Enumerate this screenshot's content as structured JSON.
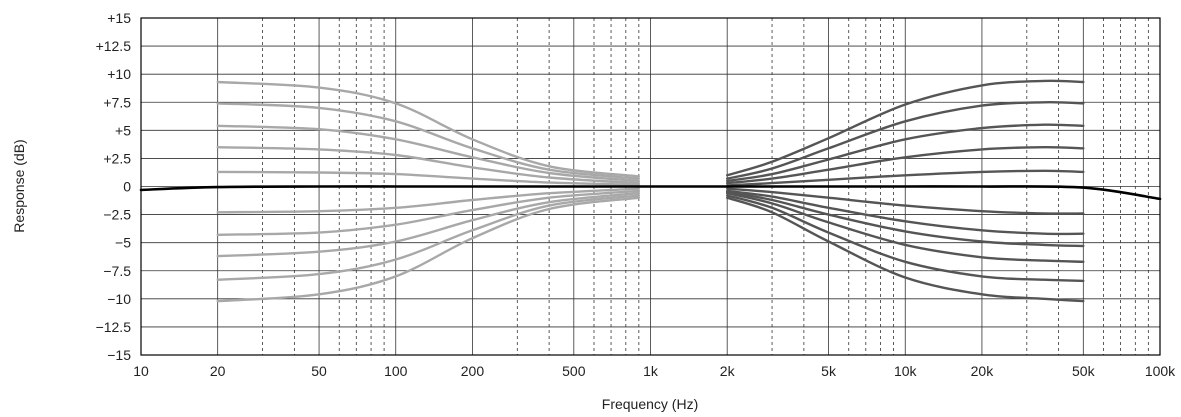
{
  "chart_data": {
    "type": "line",
    "xlabel": "Frequency (Hz)",
    "ylabel": "Response (dB)",
    "x_scale": "log",
    "xlim": [
      10,
      100000
    ],
    "ylim": [
      -15,
      15
    ],
    "x_major_ticks": [
      10,
      20,
      50,
      100,
      200,
      500,
      1000,
      2000,
      5000,
      10000,
      20000,
      50000,
      100000
    ],
    "x_tick_labels": [
      "10",
      "20",
      "50",
      "100",
      "200",
      "500",
      "1k",
      "2k",
      "5k",
      "10k",
      "20k",
      "50k",
      "100k"
    ],
    "x_minor_ticks": [
      30,
      40,
      60,
      70,
      80,
      90,
      300,
      400,
      600,
      700,
      800,
      900,
      3000,
      4000,
      6000,
      7000,
      8000,
      9000,
      30000,
      40000,
      60000,
      70000,
      80000,
      90000
    ],
    "y_ticks": [
      15,
      12.5,
      10,
      7.5,
      5,
      2.5,
      0,
      -2.5,
      -5,
      -7.5,
      -10,
      -12.5,
      -15
    ],
    "y_tick_labels": [
      "+15",
      "+12.5",
      "+10",
      "+7.5",
      "+5",
      "+2.5",
      "0",
      "−2.5",
      "−5",
      "−7.5",
      "−10",
      "−12.5",
      "−15"
    ],
    "grid": true,
    "colors": {
      "bass_curves": "#a8a8a8",
      "treble_curves": "#555555",
      "flat_curve": "#000000",
      "grid": "#333333"
    },
    "series": [
      {
        "group": "flat",
        "x": [
          10,
          20,
          50,
          100,
          200,
          500,
          1000,
          2000,
          5000,
          10000,
          20000,
          50000,
          100000
        ],
        "y": [
          -0.3,
          -0.05,
          0,
          0,
          0,
          0,
          0,
          0,
          0,
          0,
          0,
          -0.1,
          -1.1
        ]
      },
      {
        "group": "bass",
        "x": [
          20,
          50,
          100,
          200,
          400,
          900
        ],
        "y": [
          9.3,
          8.8,
          7.4,
          4.2,
          1.8,
          0.9
        ]
      },
      {
        "group": "bass",
        "x": [
          20,
          50,
          100,
          200,
          400,
          900
        ],
        "y": [
          7.4,
          7.0,
          5.8,
          3.4,
          1.5,
          0.7
        ]
      },
      {
        "group": "bass",
        "x": [
          20,
          50,
          100,
          200,
          400,
          900
        ],
        "y": [
          5.4,
          5.1,
          4.2,
          2.6,
          1.2,
          0.5
        ]
      },
      {
        "group": "bass",
        "x": [
          20,
          50,
          100,
          200,
          400,
          900
        ],
        "y": [
          3.5,
          3.3,
          2.8,
          1.7,
          0.8,
          0.3
        ]
      },
      {
        "group": "bass",
        "x": [
          20,
          50,
          100,
          200,
          400,
          900
        ],
        "y": [
          1.3,
          1.25,
          1.1,
          0.7,
          0.35,
          0.15
        ]
      },
      {
        "group": "bass",
        "x": [
          20,
          50,
          100,
          200,
          400,
          900
        ],
        "y": [
          -2.3,
          -2.2,
          -1.9,
          -1.2,
          -0.6,
          -0.2
        ]
      },
      {
        "group": "bass",
        "x": [
          20,
          50,
          100,
          200,
          400,
          900
        ],
        "y": [
          -4.3,
          -4.1,
          -3.4,
          -2.1,
          -1.0,
          -0.4
        ]
      },
      {
        "group": "bass",
        "x": [
          20,
          50,
          100,
          200,
          400,
          900
        ],
        "y": [
          -6.2,
          -5.8,
          -4.9,
          -3.0,
          -1.4,
          -0.6
        ]
      },
      {
        "group": "bass",
        "x": [
          20,
          50,
          100,
          200,
          400,
          900
        ],
        "y": [
          -8.3,
          -7.8,
          -6.5,
          -3.9,
          -1.7,
          -0.8
        ]
      },
      {
        "group": "bass",
        "x": [
          20,
          50,
          100,
          200,
          400,
          900
        ],
        "y": [
          -10.2,
          -9.6,
          -8.0,
          -4.6,
          -2.0,
          -1.0
        ]
      },
      {
        "group": "treble",
        "x": [
          2000,
          3000,
          5000,
          10000,
          20000,
          35000,
          50000
        ],
        "y": [
          1.0,
          2.2,
          4.3,
          7.3,
          9.0,
          9.4,
          9.3
        ]
      },
      {
        "group": "treble",
        "x": [
          2000,
          3000,
          5000,
          10000,
          20000,
          35000,
          50000
        ],
        "y": [
          0.7,
          1.6,
          3.4,
          5.8,
          7.2,
          7.5,
          7.4
        ]
      },
      {
        "group": "treble",
        "x": [
          2000,
          3000,
          5000,
          10000,
          20000,
          35000,
          50000
        ],
        "y": [
          0.5,
          1.1,
          2.4,
          4.2,
          5.2,
          5.5,
          5.4
        ]
      },
      {
        "group": "treble",
        "x": [
          2000,
          3000,
          5000,
          10000,
          20000,
          35000,
          50000
        ],
        "y": [
          0.3,
          0.7,
          1.5,
          2.6,
          3.3,
          3.5,
          3.4
        ]
      },
      {
        "group": "treble",
        "x": [
          2000,
          3000,
          5000,
          10000,
          20000,
          35000,
          50000
        ],
        "y": [
          0.1,
          0.3,
          0.6,
          1.0,
          1.3,
          1.4,
          1.3
        ]
      },
      {
        "group": "treble",
        "x": [
          2000,
          3000,
          5000,
          10000,
          20000,
          35000,
          50000
        ],
        "y": [
          -0.2,
          -0.5,
          -1.0,
          -1.7,
          -2.2,
          -2.4,
          -2.4
        ]
      },
      {
        "group": "treble",
        "x": [
          2000,
          3000,
          5000,
          10000,
          20000,
          35000,
          50000
        ],
        "y": [
          -0.4,
          -0.9,
          -1.9,
          -3.1,
          -3.9,
          -4.2,
          -4.2
        ]
      },
      {
        "group": "treble",
        "x": [
          2000,
          3000,
          5000,
          10000,
          20000,
          35000,
          50000
        ],
        "y": [
          -0.5,
          -1.2,
          -2.5,
          -4.0,
          -4.9,
          -5.2,
          -5.3
        ]
      },
      {
        "group": "treble",
        "x": [
          2000,
          3000,
          5000,
          10000,
          20000,
          35000,
          50000
        ],
        "y": [
          -0.6,
          -1.5,
          -3.2,
          -5.2,
          -6.3,
          -6.6,
          -6.7
        ]
      },
      {
        "group": "treble",
        "x": [
          2000,
          3000,
          5000,
          10000,
          20000,
          35000,
          50000
        ],
        "y": [
          -0.8,
          -1.9,
          -4.1,
          -6.7,
          -8.0,
          -8.3,
          -8.4
        ]
      },
      {
        "group": "treble",
        "x": [
          2000,
          3000,
          5000,
          10000,
          20000,
          35000,
          50000
        ],
        "y": [
          -1.0,
          -2.3,
          -4.9,
          -8.1,
          -9.6,
          -10.0,
          -10.2
        ]
      }
    ]
  }
}
